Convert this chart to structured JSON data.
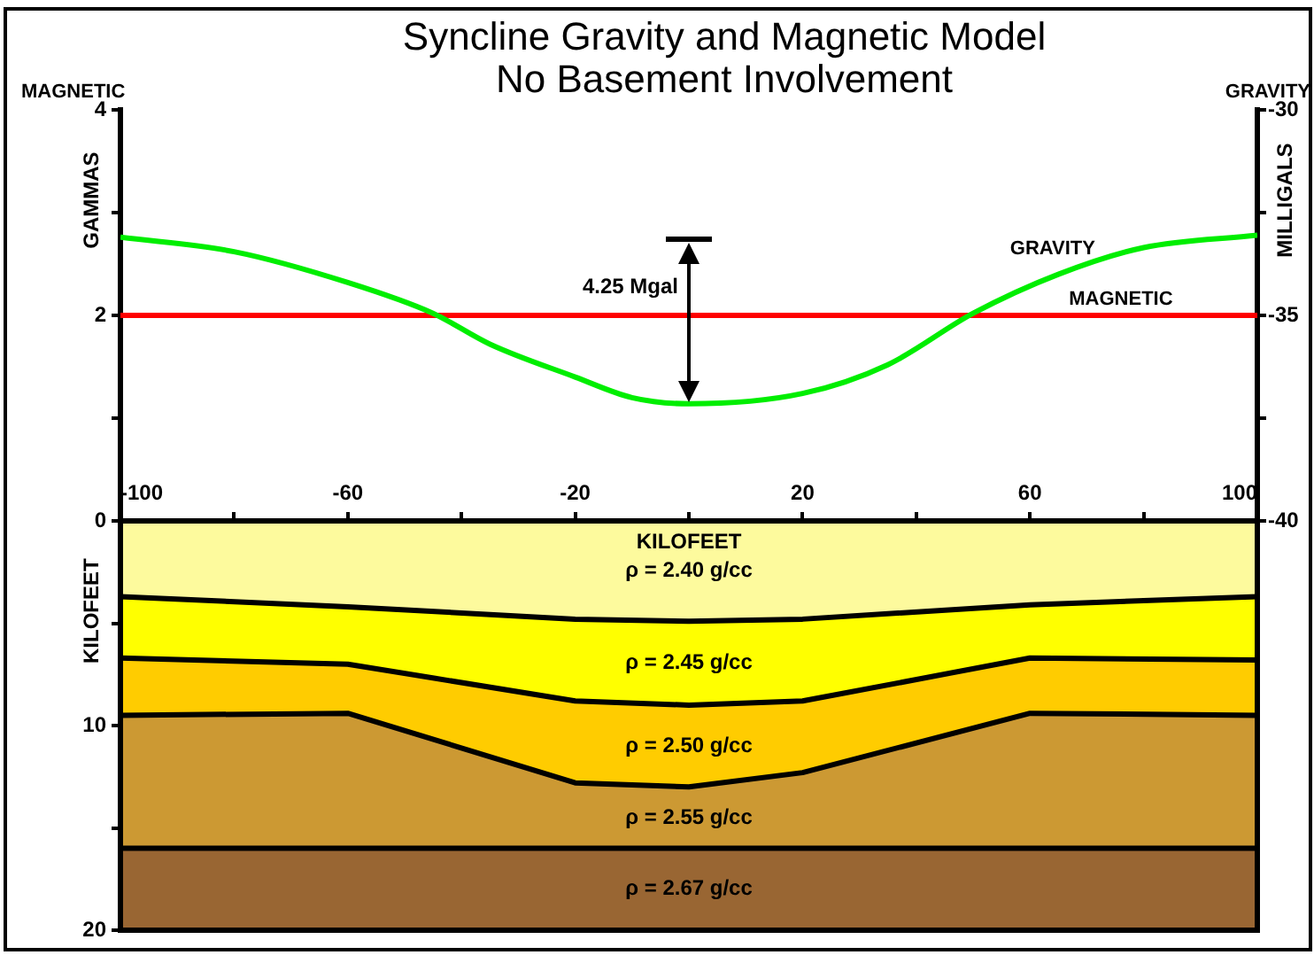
{
  "chart_data": [
    {
      "type": "line",
      "title": "Syncline Gravity and Magnetic Model",
      "subtitle": "No Basement Involvement",
      "ylabel": "GAMMAS",
      "y2label": "MILLIGALS",
      "series": [
        {
          "name": "GRAVITY",
          "color": "#00ee00",
          "axis": "y2",
          "x": [
            -100,
            -80,
            -60,
            -45,
            -35,
            -20,
            -10,
            0,
            20,
            35,
            50,
            65,
            80,
            100
          ],
          "values": [
            -33.1,
            -33.45,
            -34.2,
            -34.95,
            -35.7,
            -36.5,
            -37.0,
            -37.15,
            -36.9,
            -36.2,
            -34.95,
            -34.0,
            -33.35,
            -33.05
          ]
        },
        {
          "name": "MAGNETIC",
          "color": "#ff0000",
          "x": [
            -100,
            100
          ],
          "values": [
            2,
            2
          ]
        }
      ],
      "xlim": [
        -100,
        100
      ],
      "xticks": [
        -100,
        -80,
        -60,
        -40,
        -20,
        0,
        20,
        40,
        60,
        80,
        100
      ],
      "ylim": [
        0,
        4
      ],
      "yticks": [
        0,
        {
          "value": 1,
          "label": null
        },
        2,
        {
          "value": 3,
          "label": null
        },
        4
      ],
      "y2lim": [
        -40,
        -30
      ],
      "y2ticks": [
        -40,
        {
          "value": -37.5,
          "label": null
        },
        -35,
        {
          "value": -32.5,
          "label": null
        },
        -30
      ],
      "annotations": [
        "4.25 Mgal"
      ],
      "tick_labels": "y",
      "grid": false,
      "legend": false,
      "marker": "none",
      "line_style": "solid"
    },
    {
      "type": "area",
      "stacked": true,
      "xlabel": "KILOFEET",
      "ylabel": "KILOFEET",
      "x": [
        -100,
        -60,
        -20,
        0,
        20,
        60,
        100
      ],
      "series": [
        {
          "name": "ρ = 2.40 g/cc",
          "color": "#fdfa9d",
          "values": [
            3.7,
            4.2,
            4.8,
            4.9,
            4.8,
            4.1,
            3.7
          ]
        },
        {
          "name": "ρ = 2.45 g/cc",
          "color": "#ffff00",
          "values": [
            3.0,
            2.8,
            4.0,
            4.1,
            4.0,
            2.6,
            3.1
          ]
        },
        {
          "name": "ρ = 2.50 g/cc",
          "color": "#ffcc00",
          "values": [
            2.8,
            2.4,
            4.0,
            4.0,
            3.5,
            2.7,
            2.7
          ]
        },
        {
          "name": "ρ = 2.55 g/cc",
          "color": "#cc9933",
          "values": [
            6.5,
            6.6,
            3.2,
            3.0,
            3.7,
            6.6,
            6.5
          ]
        },
        {
          "name": "ρ = 2.67 g/cc",
          "color": "#996633",
          "values": [
            4,
            4,
            4,
            4,
            4,
            4,
            4
          ]
        }
      ],
      "xlim": [
        -100,
        100
      ],
      "xticks": [
        -100,
        {
          "value": -80,
          "label": null
        },
        -60,
        {
          "value": -40,
          "label": null
        },
        -20,
        {
          "value": 0,
          "label": null
        },
        20,
        {
          "value": 40,
          "label": null
        },
        60,
        {
          "value": 80,
          "label": null
        },
        100
      ],
      "ylim": [
        20,
        0
      ],
      "yticks": [
        {
          "value": 0,
          "label": null
        },
        {
          "value": 5,
          "label": null
        },
        10,
        {
          "value": 15,
          "label": null
        },
        20
      ],
      "grid": false,
      "legend": false
    }
  ]
}
